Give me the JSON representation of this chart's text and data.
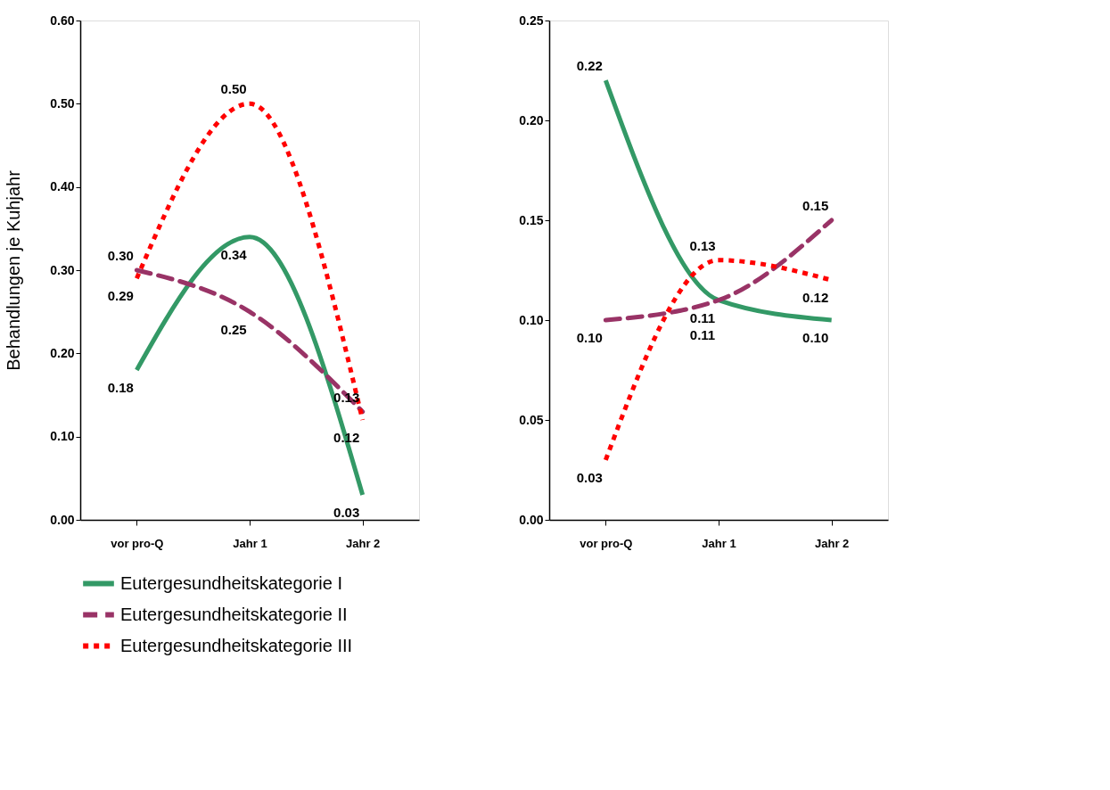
{
  "chart_data": [
    {
      "type": "line",
      "ylabel": "Behandlungen je Kuhjahr",
      "categories": [
        "vor pro-Q",
        "Jahr 1",
        "Jahr 2"
      ],
      "ylim": [
        0,
        0.6
      ],
      "yticks": [
        {
          "value": 0,
          "label": "0.00"
        },
        {
          "value": 0.1,
          "label": "0.10"
        },
        {
          "value": 0.2,
          "label": "0.20"
        },
        {
          "value": 0.3,
          "label": "0.30"
        },
        {
          "value": 0.4,
          "label": "0.40"
        },
        {
          "value": 0.5,
          "label": "0.50"
        },
        {
          "value": 0.6,
          "label": "0.60"
        }
      ],
      "grid": false,
      "legend": "bottom",
      "series": [
        {
          "name": "Eutergesundheitskategorie I",
          "color": "#339966",
          "line_style": "solid",
          "values": [
            0.18,
            0.34,
            0.03
          ],
          "value_labels": [
            "0.18",
            "0.34",
            "0.03"
          ]
        },
        {
          "name": "Eutergesundheitskategorie II",
          "color": "#993366",
          "line_style": "dashed",
          "values": [
            0.3,
            0.25,
            0.13
          ],
          "value_labels": [
            "0.30",
            "0.25",
            "0.13"
          ]
        },
        {
          "name": "Eutergesundheitskategorie III",
          "color": "#ff0000",
          "line_style": "dotted",
          "values": [
            0.29,
            0.5,
            0.12
          ],
          "value_labels": [
            "0.29",
            "0.50",
            "0.12"
          ]
        }
      ]
    },
    {
      "type": "line",
      "categories": [
        "vor pro-Q",
        "Jahr 1",
        "Jahr 2"
      ],
      "ylim": [
        0,
        0.25
      ],
      "yticks": [
        {
          "value": 0,
          "label": "0.00"
        },
        {
          "value": 0.05,
          "label": "0.05"
        },
        {
          "value": 0.1,
          "label": "0.10"
        },
        {
          "value": 0.15,
          "label": "0.15"
        },
        {
          "value": 0.2,
          "label": "0.20"
        },
        {
          "value": 0.25,
          "label": "0.25"
        }
      ],
      "grid": false,
      "series": [
        {
          "color": "#339966",
          "line_style": "solid",
          "values": [
            0.22,
            0.11,
            0.1
          ],
          "value_labels": [
            "0.22",
            "0.11",
            "0.10"
          ]
        },
        {
          "color": "#993366",
          "line_style": "dashed",
          "values": [
            0.1,
            0.11,
            0.15
          ],
          "value_labels": [
            "0.10",
            "0.11",
            "0.15"
          ]
        },
        {
          "color": "#ff0000",
          "line_style": "dotted",
          "values": [
            0.03,
            0.13,
            0.12
          ],
          "value_labels": [
            "0.03",
            "0.13",
            "0.12"
          ]
        }
      ]
    }
  ]
}
